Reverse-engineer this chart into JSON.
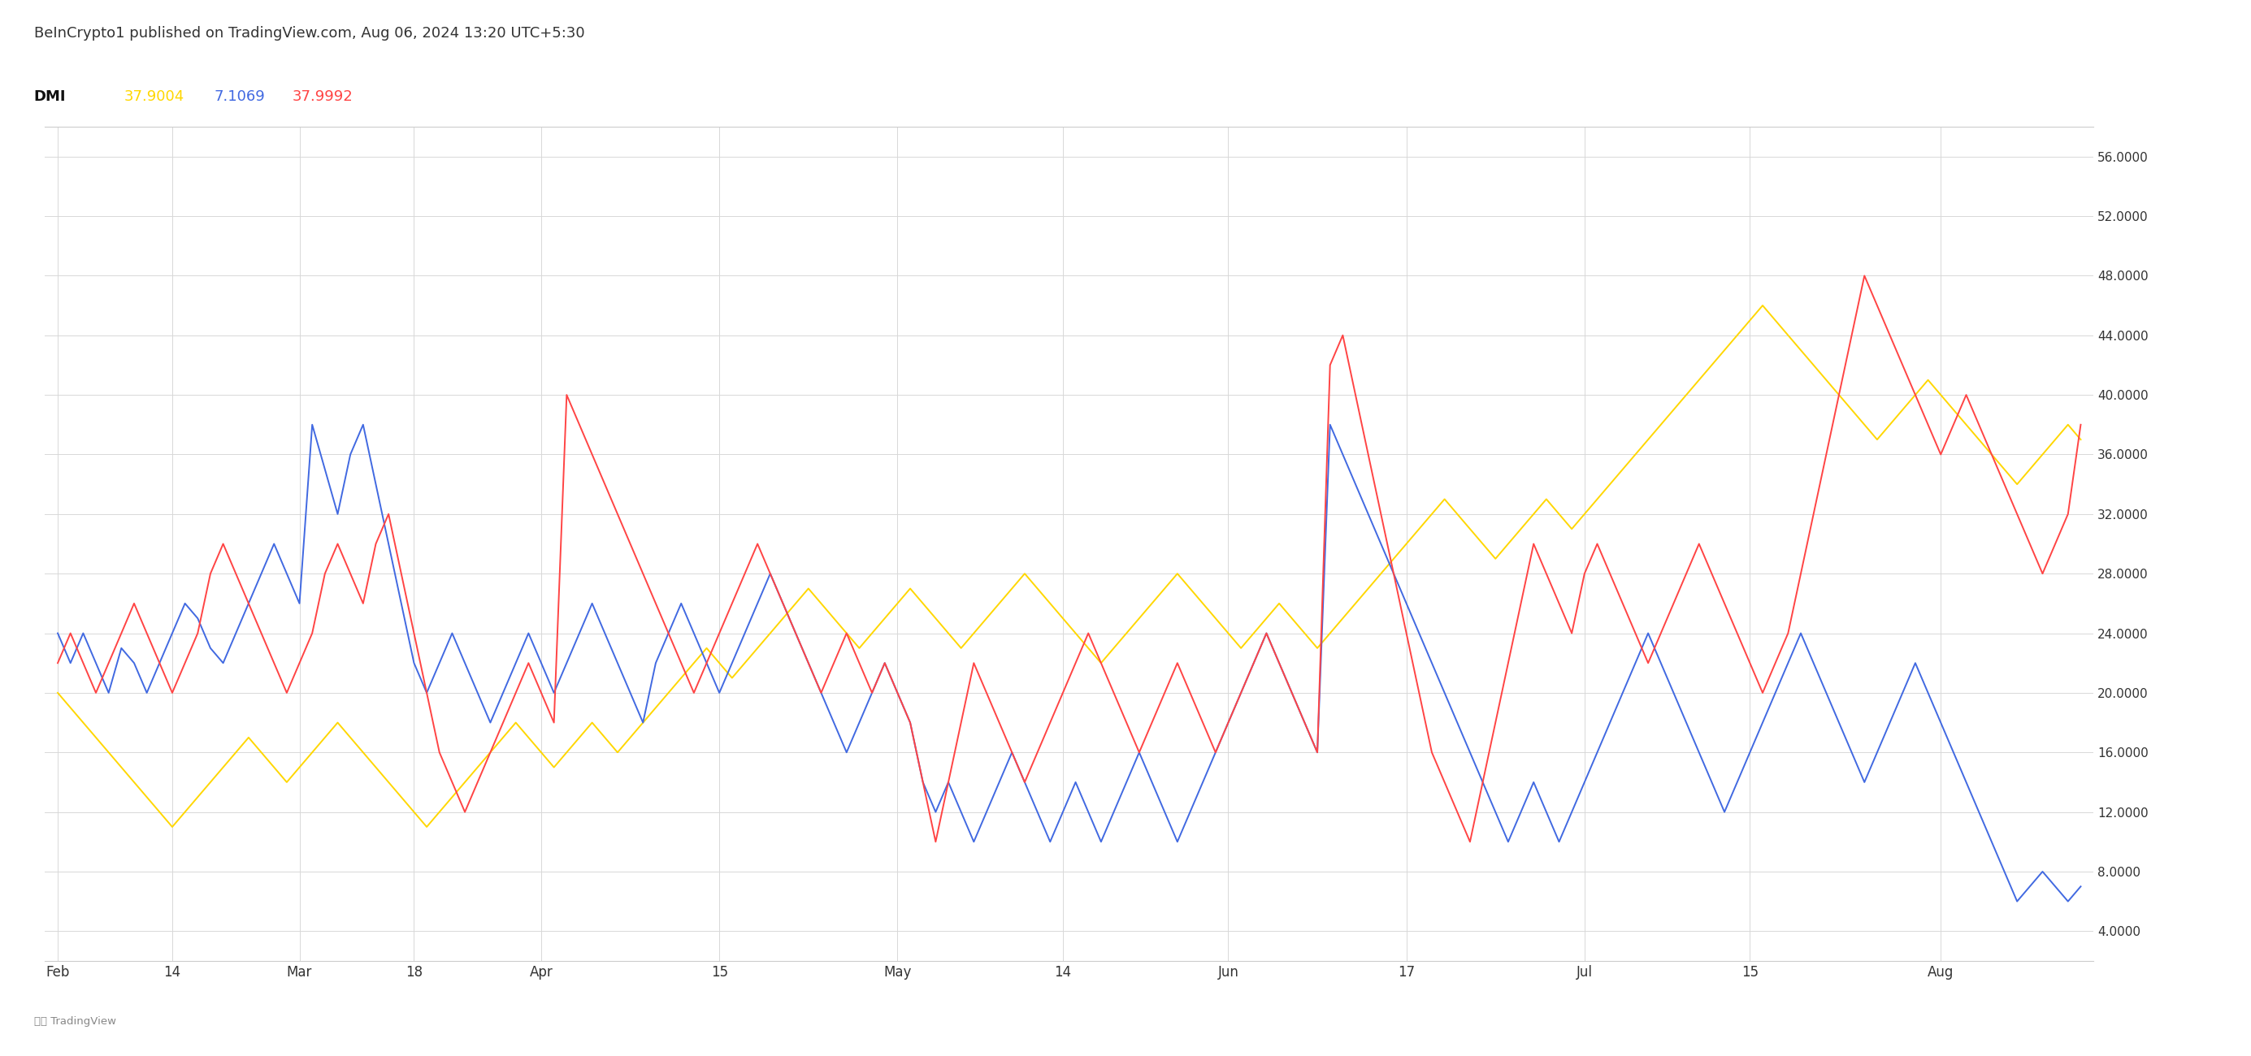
{
  "title": "BeInCrypto1 published on TradingView.com, Aug 06, 2024 13:20 UTC+5:30",
  "legend_label": "DMI",
  "legend_values": [
    "37.9004",
    "7.1069",
    "37.9992"
  ],
  "legend_colors": [
    "#FFD700",
    "#4169E1",
    "#FF4444"
  ],
  "line_colors": [
    "#FFD700",
    "#4169E1",
    "#FF4444"
  ],
  "background_color": "#ffffff",
  "plot_bg_color": "#ffffff",
  "grid_color": "#d8d8d8",
  "ytick_labels": [
    "4.0000",
    "8.0000",
    "12.0000",
    "16.0000",
    "20.0000",
    "24.0000",
    "28.0000",
    "32.0000",
    "36.0000",
    "40.0000",
    "44.0000",
    "48.0000",
    "52.0000",
    "56.0000"
  ],
  "ytick_values": [
    4,
    8,
    12,
    16,
    20,
    24,
    28,
    32,
    36,
    40,
    44,
    48,
    52,
    56
  ],
  "xtick_labels": [
    "Feb",
    "14",
    "Mar",
    "18",
    "Apr",
    "15",
    "May",
    "14",
    "Jun",
    "17",
    "Jul",
    "15",
    "Aug"
  ],
  "ylim": [
    2,
    58
  ],
  "tradingview_text": "TradingView",
  "title_fontsize": 13,
  "axis_fontsize": 11,
  "legend_fontsize": 13,
  "blue_y": [
    24,
    22,
    24,
    22,
    20,
    23,
    22,
    20,
    22,
    24,
    26,
    25,
    23,
    22,
    24,
    26,
    28,
    30,
    28,
    26,
    38,
    35,
    32,
    36,
    38,
    34,
    30,
    26,
    22,
    20,
    22,
    24,
    22,
    20,
    18,
    20,
    22,
    24,
    22,
    20,
    22,
    24,
    26,
    24,
    22,
    20,
    18,
    22,
    24,
    26,
    24,
    22,
    20,
    22,
    24,
    26,
    28,
    26,
    24,
    22,
    20,
    18,
    16,
    18,
    20,
    22,
    20,
    18,
    14,
    12,
    14,
    12,
    10,
    12,
    14,
    16,
    14,
    12,
    10,
    12,
    14,
    12,
    10,
    12,
    14,
    16,
    14,
    12,
    10,
    12,
    14,
    16,
    18,
    20,
    22,
    24,
    22,
    20,
    18,
    16,
    38,
    36,
    34,
    32,
    30,
    28,
    26,
    24,
    22,
    20,
    18,
    16,
    14,
    12,
    10,
    12,
    14,
    12,
    10,
    12,
    14,
    16,
    18,
    20,
    22,
    24,
    22,
    20,
    18,
    16,
    14,
    12,
    14,
    16,
    18,
    20,
    22,
    24,
    22,
    20,
    18,
    16,
    14,
    16,
    18,
    20,
    22,
    20,
    18,
    16,
    14,
    12,
    10,
    8,
    6,
    7,
    8,
    7,
    6,
    7
  ],
  "red_y": [
    22,
    24,
    22,
    20,
    22,
    24,
    26,
    24,
    22,
    20,
    22,
    24,
    28,
    30,
    28,
    26,
    24,
    22,
    20,
    22,
    24,
    28,
    30,
    28,
    26,
    30,
    32,
    28,
    24,
    20,
    16,
    14,
    12,
    14,
    16,
    18,
    20,
    22,
    20,
    18,
    40,
    38,
    36,
    34,
    32,
    30,
    28,
    26,
    24,
    22,
    20,
    22,
    24,
    26,
    28,
    30,
    28,
    26,
    24,
    22,
    20,
    22,
    24,
    22,
    20,
    22,
    20,
    18,
    14,
    10,
    14,
    18,
    22,
    20,
    18,
    16,
    14,
    16,
    18,
    20,
    22,
    24,
    22,
    20,
    18,
    16,
    18,
    20,
    22,
    20,
    18,
    16,
    18,
    20,
    22,
    24,
    22,
    20,
    18,
    16,
    42,
    44,
    40,
    36,
    32,
    28,
    24,
    20,
    16,
    14,
    12,
    10,
    14,
    18,
    22,
    26,
    30,
    28,
    26,
    24,
    28,
    30,
    28,
    26,
    24,
    22,
    24,
    26,
    28,
    30,
    28,
    26,
    24,
    22,
    20,
    22,
    24,
    28,
    32,
    36,
    40,
    44,
    48,
    46,
    44,
    42,
    40,
    38,
    36,
    38,
    40,
    38,
    36,
    34,
    32,
    30,
    28,
    30,
    32,
    38
  ],
  "yellow_y": [
    20,
    19,
    18,
    17,
    16,
    15,
    14,
    13,
    12,
    11,
    12,
    13,
    14,
    15,
    16,
    17,
    16,
    15,
    14,
    15,
    16,
    17,
    18,
    17,
    16,
    15,
    14,
    13,
    12,
    11,
    12,
    13,
    14,
    15,
    16,
    17,
    18,
    17,
    16,
    15,
    16,
    17,
    18,
    17,
    16,
    17,
    18,
    19,
    20,
    21,
    22,
    23,
    22,
    21,
    22,
    23,
    24,
    25,
    26,
    27,
    26,
    25,
    24,
    23,
    24,
    25,
    26,
    27,
    26,
    25,
    24,
    23,
    24,
    25,
    26,
    27,
    28,
    27,
    26,
    25,
    24,
    23,
    22,
    23,
    24,
    25,
    26,
    27,
    28,
    27,
    26,
    25,
    24,
    23,
    24,
    25,
    26,
    25,
    24,
    23,
    24,
    25,
    26,
    27,
    28,
    29,
    30,
    31,
    32,
    33,
    32,
    31,
    30,
    29,
    30,
    31,
    32,
    33,
    32,
    31,
    32,
    33,
    34,
    35,
    36,
    37,
    38,
    39,
    40,
    41,
    42,
    43,
    44,
    45,
    46,
    45,
    44,
    43,
    42,
    41,
    40,
    39,
    38,
    37,
    38,
    39,
    40,
    41,
    40,
    39,
    38,
    37,
    36,
    35,
    34,
    35,
    36,
    37,
    38,
    37
  ]
}
